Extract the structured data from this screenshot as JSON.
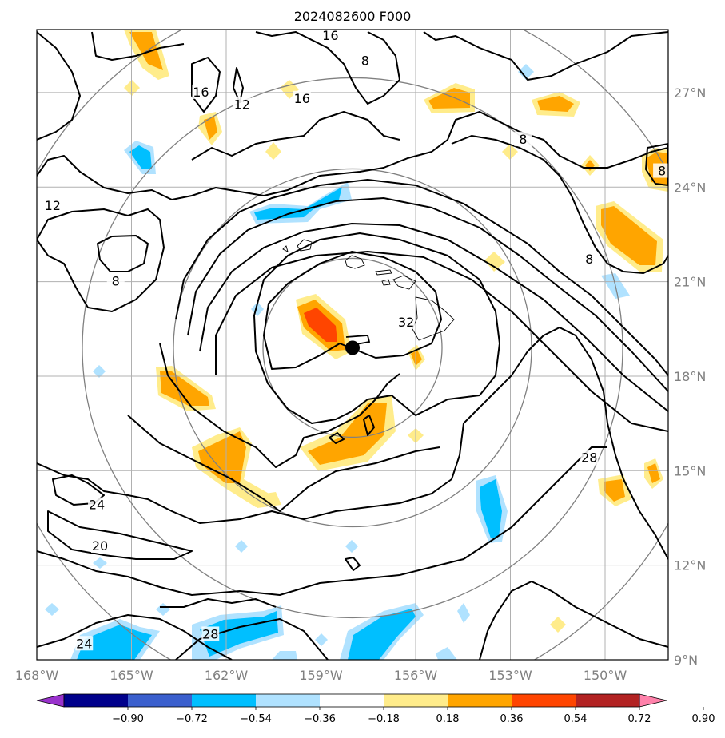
{
  "title": "2024082600 F000",
  "map": {
    "lon_range": [
      -168,
      -148
    ],
    "lat_range": [
      9,
      29
    ],
    "lon_ticks": [
      {
        "value": -168,
        "label": "168°W"
      },
      {
        "value": -165,
        "label": "165°W"
      },
      {
        "value": -162,
        "label": "162°W"
      },
      {
        "value": -159,
        "label": "159°W"
      },
      {
        "value": -156,
        "label": "156°W"
      },
      {
        "value": -153,
        "label": "153°W"
      },
      {
        "value": -150,
        "label": "150°W"
      }
    ],
    "lat_ticks": [
      {
        "value": 9,
        "label": "9°N"
      },
      {
        "value": 12,
        "label": "12°N"
      },
      {
        "value": 15,
        "label": "15°N"
      },
      {
        "value": 18,
        "label": "18°N"
      },
      {
        "value": 21,
        "label": "21°N"
      },
      {
        "value": 24,
        "label": "24°N"
      },
      {
        "value": 27,
        "label": "27°N"
      }
    ],
    "storm_center": {
      "lon": -158,
      "lat": 18.9
    },
    "range_ring_color": "#808080",
    "contour_color": "#000000",
    "contour_labels": [
      {
        "text": "16",
        "lon": -158.7,
        "lat": 28.8
      },
      {
        "text": "8",
        "lon": -157.6,
        "lat": 28.0
      },
      {
        "text": "16",
        "lon": -162.8,
        "lat": 27.0
      },
      {
        "text": "12",
        "lon": -161.5,
        "lat": 26.6
      },
      {
        "text": "16",
        "lon": -159.6,
        "lat": 26.8
      },
      {
        "text": "8",
        "lon": -152.6,
        "lat": 25.5
      },
      {
        "text": "8",
        "lon": -148.2,
        "lat": 24.5
      },
      {
        "text": "12",
        "lon": -167.5,
        "lat": 23.4
      },
      {
        "text": "8",
        "lon": -150.5,
        "lat": 21.7
      },
      {
        "text": "8",
        "lon": -165.5,
        "lat": 21.0
      },
      {
        "text": "32",
        "lon": -156.3,
        "lat": 19.7
      },
      {
        "text": "28",
        "lon": -150.5,
        "lat": 15.4
      },
      {
        "text": "24",
        "lon": -166.1,
        "lat": 13.9
      },
      {
        "text": "20",
        "lon": -166.0,
        "lat": 12.6
      },
      {
        "text": "28",
        "lon": -162.5,
        "lat": 9.8
      },
      {
        "text": "24",
        "lon": -166.5,
        "lat": 9.5
      }
    ]
  },
  "colorbar": {
    "ticks": [
      "−0.90",
      "−0.72",
      "−0.54",
      "−0.36",
      "−0.18",
      "0.18",
      "0.36",
      "0.54",
      "0.72",
      "0.90"
    ],
    "colors": [
      "#9932cc",
      "#00008b",
      "#3a5fcd",
      "#00bfff",
      "#b0e2ff",
      "#ffffff",
      "#ffec8b",
      "#ffa500",
      "#ff4500",
      "#b22222",
      "#ff82ab"
    ]
  }
}
